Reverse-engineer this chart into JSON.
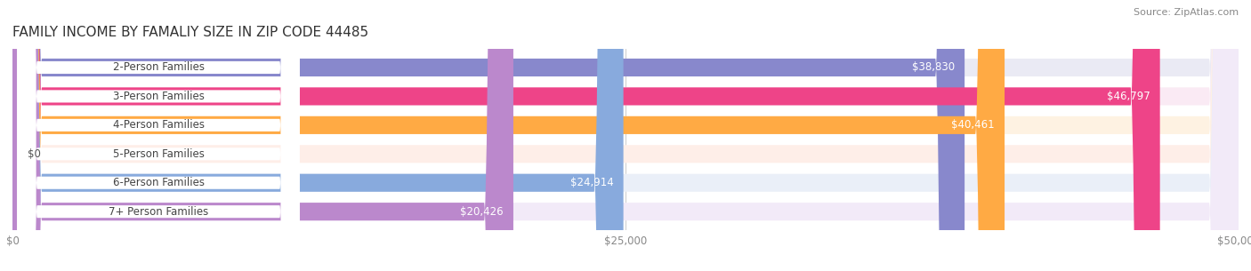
{
  "title": "FAMILY INCOME BY FAMALIY SIZE IN ZIP CODE 44485",
  "source": "Source: ZipAtlas.com",
  "categories": [
    "2-Person Families",
    "3-Person Families",
    "4-Person Families",
    "5-Person Families",
    "6-Person Families",
    "7+ Person Families"
  ],
  "values": [
    38830,
    46797,
    40461,
    0,
    24914,
    20426
  ],
  "bar_colors": [
    "#8888cc",
    "#ee4488",
    "#ffaa44",
    "#ffaaaa",
    "#88aadd",
    "#bb88cc"
  ],
  "bar_bg_colors": [
    "#eaeaf4",
    "#faeaf4",
    "#fef2e2",
    "#feeee8",
    "#eaeff8",
    "#f2eaf8"
  ],
  "value_labels": [
    "$38,830",
    "$46,797",
    "$40,461",
    "$0",
    "$24,914",
    "$20,426"
  ],
  "xlim": [
    0,
    50000
  ],
  "xticks": [
    0,
    25000,
    50000
  ],
  "xtick_labels": [
    "$0",
    "$25,000",
    "$50,000"
  ],
  "title_fontsize": 11,
  "label_fontsize": 8.5,
  "value_fontsize": 8.5,
  "source_fontsize": 8,
  "background_color": "#ffffff",
  "bar_height": 0.62
}
